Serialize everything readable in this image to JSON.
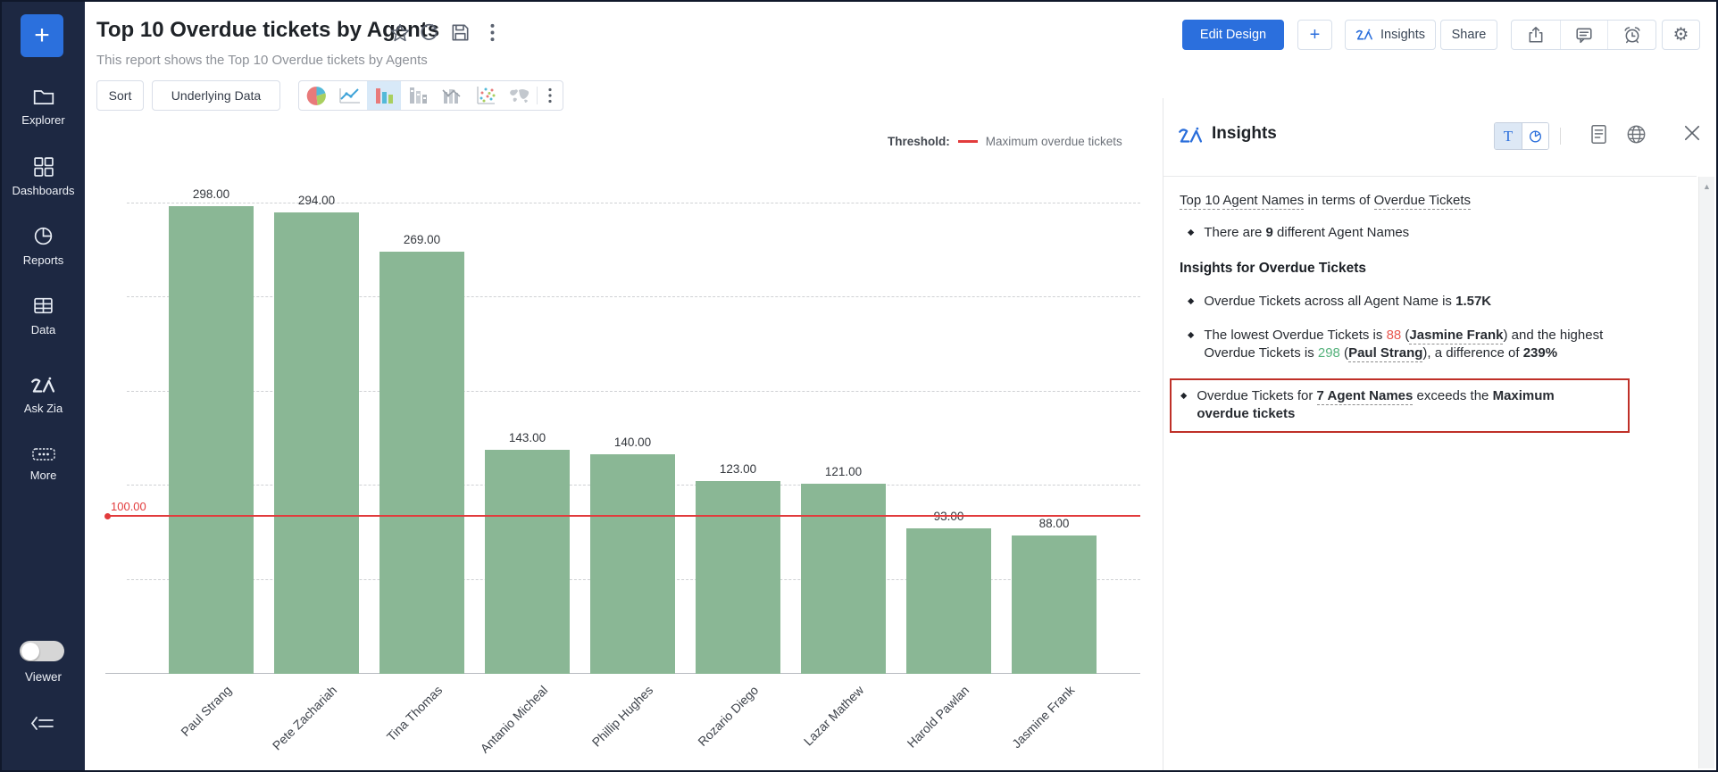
{
  "sidebar": {
    "plus_label": "+",
    "items": [
      {
        "icon": "folder-icon",
        "label": "Explorer"
      },
      {
        "icon": "dashboards-icon",
        "label": "Dashboards"
      },
      {
        "icon": "reports-icon",
        "label": "Reports"
      },
      {
        "icon": "data-icon",
        "label": "Data"
      },
      {
        "icon": "zia-icon",
        "label": "Ask Zia"
      },
      {
        "icon": "more-icon",
        "label": "More"
      }
    ],
    "viewer_label": "Viewer",
    "viewer_toggle_state": "off"
  },
  "header": {
    "title": "Top 10 Overdue tickets by Agents",
    "subtitle": "This report shows the Top 10 Overdue tickets by Agents",
    "edit_design_label": "Edit Design",
    "add_label": "+",
    "insights_label": "Insights",
    "share_label": "Share"
  },
  "toolbar": {
    "sort_label": "Sort",
    "underlying_data_label": "Underlying Data",
    "selected_chart_type": "bar"
  },
  "chart_data": {
    "type": "bar",
    "title": "Top 10 Overdue tickets by Agents",
    "categories": [
      "Paul Strang",
      "Pete Zachariah",
      "Tina Thomas",
      "Antanio Micheal",
      "Phillip Hughes",
      "Rozario Diego",
      "Lazar Mathew",
      "Harold Pawlan",
      "Jasmine Frank"
    ],
    "values": [
      298,
      294,
      269,
      143,
      140,
      123,
      121,
      93,
      88
    ],
    "value_labels": [
      "298.00",
      "294.00",
      "269.00",
      "143.00",
      "140.00",
      "123.00",
      "121.00",
      "93.00",
      "88.00"
    ],
    "bar_color": "#8ab795",
    "ylim": [
      0,
      343
    ],
    "gridlines": [
      60,
      120,
      180,
      240,
      300
    ],
    "grid": "horizontal-dashed",
    "y_tick_labels_visible": false,
    "xlabel": "",
    "ylabel": "",
    "threshold": {
      "legend_title": "Threshold:",
      "name": "Maximum overdue tickets",
      "value": 100,
      "value_label": "100.00",
      "color": "#e23b3c"
    },
    "legend_position": "top-right"
  },
  "insights_panel": {
    "title": "Insights",
    "text_view_label": "T",
    "blocks": [
      {
        "type": "headline",
        "segments": [
          {
            "text": "Top 10",
            "underline": true
          },
          {
            "text": " "
          },
          {
            "text": "Agent Names",
            "underline": true
          },
          {
            "text": " in terms of "
          },
          {
            "text": "Overdue Tickets",
            "underline": true
          }
        ]
      },
      {
        "type": "bullet",
        "segments": [
          {
            "text": "There are "
          },
          {
            "text": "9",
            "bold": true
          },
          {
            "text": " different Agent Names"
          }
        ]
      },
      {
        "type": "heading",
        "segments": [
          {
            "text": "Insights for Overdue Tickets",
            "bold": true
          }
        ]
      },
      {
        "type": "bullet",
        "segments": [
          {
            "text": "Overdue Tickets across all Agent Name is "
          },
          {
            "text": "1.57K",
            "bold": true
          }
        ]
      },
      {
        "type": "bullet",
        "segments": [
          {
            "text": "The lowest Overdue Tickets is "
          },
          {
            "text": "88",
            "color": "#e8564e"
          },
          {
            "text": " ("
          },
          {
            "text": "Jasmine Frank",
            "bold": true,
            "underline": true
          },
          {
            "text": ") and the highest Overdue Tickets is "
          },
          {
            "text": "298",
            "color": "#55b27c"
          },
          {
            "text": " ("
          },
          {
            "text": "Paul Strang",
            "bold": true,
            "underline": true
          },
          {
            "text": "), a difference of "
          },
          {
            "text": "239%",
            "bold": true
          }
        ]
      },
      {
        "type": "bullet",
        "highlighted": true,
        "segments": [
          {
            "text": "Overdue Tickets for "
          },
          {
            "text": "7 Agent Names",
            "bold": true,
            "underline": true
          },
          {
            "text": " exceeds the "
          },
          {
            "text": "Maximum overdue tickets",
            "bold": true
          }
        ]
      }
    ],
    "highlight_box_color": "#bf3028"
  },
  "colors": {
    "accent_blue": "#2b6fdd",
    "sidebar_bg": "#1d2842",
    "bar_green": "#8ab795",
    "threshold_red": "#e23b3c",
    "insight_low_red": "#e8564e",
    "insight_high_green": "#55b27c"
  }
}
